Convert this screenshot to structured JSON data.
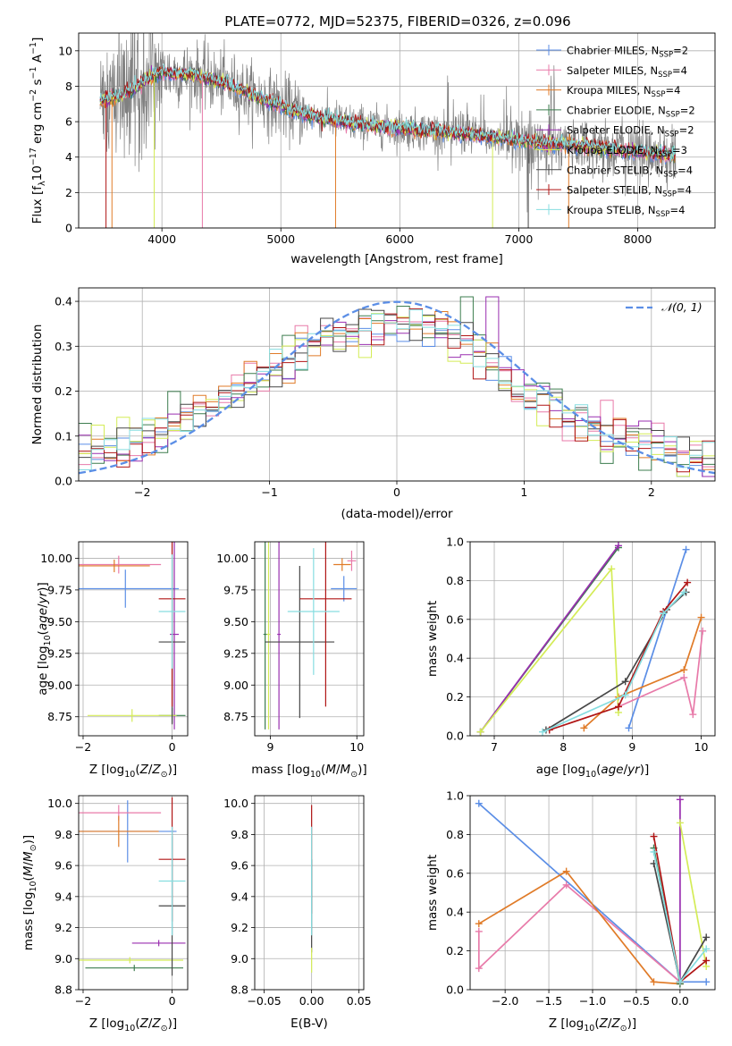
{
  "figure": {
    "title": "PLATE=0772, MJD=52375, FIBERID=0326, z=0.096"
  },
  "colors": {
    "chabrier_miles": "#5b8ee6",
    "salpeter_miles": "#e87aa9",
    "kroupa_miles": "#e07b28",
    "chabrier_elodie": "#3d7d4f",
    "salpeter_elodie": "#9a2fb0",
    "kroupa_elodie": "#d4ec57",
    "chabrier_stelib": "#474747",
    "salpeter_stelib": "#b01515",
    "kroupa_stelib": "#86dde0",
    "data": "#808080",
    "normal": "#5b8ee6"
  },
  "chart_data": [
    {
      "id": "spectrum",
      "type": "line",
      "xlabel": "wavelength [Angstrom, rest frame]",
      "ylabel": "Flux [f_λ10^-17 erg cm^-2 s^-1 A^-1]",
      "xlim": [
        3300,
        8650
      ],
      "ylim": [
        0,
        11
      ],
      "xticks": [
        4000,
        5000,
        6000,
        7000,
        8000
      ],
      "yticks": [
        0,
        2,
        4,
        6,
        8,
        10
      ],
      "legend_position": "top-right",
      "continuum_model": {
        "x": [
          3500,
          3700,
          3850,
          4000,
          4300,
          4600,
          4900,
          5200,
          5600,
          6000,
          6400,
          6800,
          7200,
          7600,
          8000,
          8300
        ],
        "y": [
          7.2,
          7.6,
          8.3,
          8.8,
          8.6,
          8.0,
          7.1,
          6.4,
          5.9,
          5.6,
          5.4,
          5.1,
          4.8,
          4.6,
          4.3,
          4.1
        ]
      },
      "legend": [
        {
          "label": "Chabrier MILES, N",
          "sub": "SSP",
          "n": "=2",
          "color_key": "chabrier_miles"
        },
        {
          "label": "Salpeter MILES, N",
          "sub": "SSP",
          "n": "=4",
          "color_key": "salpeter_miles"
        },
        {
          "label": "Kroupa MILES, N",
          "sub": "SSP",
          "n": "=4",
          "color_key": "kroupa_miles"
        },
        {
          "label": "Chabrier ELODIE, N",
          "sub": "SSP",
          "n": "=2",
          "color_key": "chabrier_elodie"
        },
        {
          "label": "Salpeter ELODIE, N",
          "sub": "SSP",
          "n": "=2",
          "color_key": "salpeter_elodie"
        },
        {
          "label": "Kroupa ELODIE, N",
          "sub": "SSP",
          "n": "=3",
          "color_key": "kroupa_elodie"
        },
        {
          "label": "Chabrier STELIB, N",
          "sub": "SSP",
          "n": "=4",
          "color_key": "chabrier_stelib"
        },
        {
          "label": "Salpeter STELIB, N",
          "sub": "SSP",
          "n": "=4",
          "color_key": "salpeter_stelib"
        },
        {
          "label": "Kroupa STELIB, N",
          "sub": "SSP",
          "n": "=4",
          "color_key": "kroupa_stelib"
        }
      ]
    },
    {
      "id": "residuals",
      "type": "histogram",
      "xlabel": "(data-model)/error",
      "ylabel": "Normed distribution",
      "xlim": [
        -2.5,
        2.5
      ],
      "ylim": [
        0,
        0.43
      ],
      "xticks": [
        -2,
        -1,
        0,
        1,
        2
      ],
      "yticks": [
        0.0,
        0.1,
        0.2,
        0.3,
        0.4
      ],
      "bin_width": 0.1,
      "legend": [
        {
          "label": "𝒩(0, 1)",
          "color_key": "normal",
          "style": "dashed"
        }
      ],
      "legend_position": "top-right"
    },
    {
      "id": "age_vs_Z",
      "type": "errorbar",
      "xlabel": "Z [log10(Z/Z⊙)]",
      "ylabel": "age [log10(age/yr)]",
      "xlim": [
        -2.1,
        0.35
      ],
      "ylim": [
        8.6,
        10.13
      ],
      "xticks": [
        -2,
        0
      ],
      "yticks": [
        8.75,
        9.0,
        9.25,
        9.5,
        9.75,
        10.0
      ],
      "points": [
        {
          "c": "chabrier_miles",
          "x": -1.05,
          "y": 9.76,
          "xerr": 1.2,
          "yerr": 0.15
        },
        {
          "c": "salpeter_miles",
          "x": -1.2,
          "y": 9.95,
          "xerr": 0.95,
          "yerr": 0.07
        },
        {
          "c": "kroupa_miles",
          "x": -1.3,
          "y": 9.94,
          "xerr": 0.8,
          "yerr": 0.05
        },
        {
          "c": "chabrier_elodie",
          "x": 0.0,
          "y": 8.76,
          "xerr": 0.3,
          "yerr": 0.06
        },
        {
          "c": "salpeter_elodie",
          "x": 0.05,
          "y": 9.4,
          "xerr": 0.1,
          "yerr": 0.75
        },
        {
          "c": "kroupa_elodie",
          "x": -0.9,
          "y": 8.76,
          "xerr": 1.0,
          "yerr": 0.05
        },
        {
          "c": "chabrier_stelib",
          "x": 0.0,
          "y": 9.34,
          "xerr": 0.3,
          "yerr": 0.65
        },
        {
          "c": "salpeter_stelib",
          "x": 0.0,
          "y": 9.68,
          "xerr": 0.3,
          "yerr": 0.85
        },
        {
          "c": "kroupa_stelib",
          "x": 0.0,
          "y": 9.58,
          "xerr": 0.3,
          "yerr": 0.45
        }
      ]
    },
    {
      "id": "age_vs_mass",
      "type": "errorbar",
      "xlabel": "mass [log10(M/M⊙)]",
      "ylabel": "",
      "xlim": [
        8.82,
        10.08
      ],
      "ylim": [
        8.6,
        10.13
      ],
      "xticks": [
        9,
        10
      ],
      "yticks": [
        8.75,
        9.0,
        9.25,
        9.5,
        9.75,
        10.0
      ],
      "points": [
        {
          "c": "chabrier_miles",
          "x": 9.85,
          "y": 9.76,
          "xerr": 0.15,
          "yerr": 0.1
        },
        {
          "c": "salpeter_miles",
          "x": 9.94,
          "y": 9.98,
          "xerr": 0.05,
          "yerr": 0.08
        },
        {
          "c": "kroupa_miles",
          "x": 9.83,
          "y": 9.95,
          "xerr": 0.1,
          "yerr": 0.05
        },
        {
          "c": "chabrier_elodie",
          "x": 8.94,
          "y": 9.4,
          "xerr": 0.02,
          "yerr": 0.75
        },
        {
          "c": "salpeter_elodie",
          "x": 9.1,
          "y": 9.4,
          "xerr": 0.02,
          "yerr": 0.75
        },
        {
          "c": "kroupa_elodie",
          "x": 8.98,
          "y": 9.4,
          "xerr": 0.02,
          "yerr": 0.75
        },
        {
          "c": "chabrier_stelib",
          "x": 9.34,
          "y": 9.34,
          "xerr": 0.4,
          "yerr": 0.6
        },
        {
          "c": "salpeter_stelib",
          "x": 9.64,
          "y": 9.68,
          "xerr": 0.3,
          "yerr": 0.85
        },
        {
          "c": "kroupa_stelib",
          "x": 9.5,
          "y": 9.58,
          "xerr": 0.3,
          "yerr": 0.5
        }
      ]
    },
    {
      "id": "mass_weight_vs_age",
      "type": "line",
      "xlabel": "age [log10(age/yr)]",
      "ylabel": "mass weight",
      "xlim": [
        6.65,
        10.2
      ],
      "ylim": [
        0,
        1
      ],
      "xticks": [
        7,
        8,
        9,
        10
      ],
      "yticks": [
        0.0,
        0.2,
        0.4,
        0.6,
        0.8,
        1.0
      ],
      "series": [
        {
          "c": "chabrier_miles",
          "x": [
            8.95,
            9.78
          ],
          "y": [
            0.04,
            0.96
          ]
        },
        {
          "c": "salpeter_miles",
          "x": [
            8.8,
            9.75,
            9.88,
            10.02
          ],
          "y": [
            0.15,
            0.3,
            0.11,
            0.54
          ]
        },
        {
          "c": "kroupa_miles",
          "x": [
            8.3,
            8.8,
            9.75,
            10.0
          ],
          "y": [
            0.04,
            0.2,
            0.34,
            0.61
          ]
        },
        {
          "c": "chabrier_elodie",
          "x": [
            6.8,
            8.8
          ],
          "y": [
            0.02,
            0.97
          ]
        },
        {
          "c": "salpeter_elodie",
          "x": [
            6.8,
            8.8
          ],
          "y": [
            0.02,
            0.98
          ]
        },
        {
          "c": "kroupa_elodie",
          "x": [
            6.8,
            8.7,
            8.8
          ],
          "y": [
            0.02,
            0.86,
            0.12
          ]
        },
        {
          "c": "chabrier_stelib",
          "x": [
            7.75,
            8.9,
            9.5,
            9.78
          ],
          "y": [
            0.03,
            0.28,
            0.65,
            0.74
          ]
        },
        {
          "c": "salpeter_stelib",
          "x": [
            7.8,
            8.8,
            9.45,
            9.8
          ],
          "y": [
            0.03,
            0.15,
            0.64,
            0.79
          ]
        },
        {
          "c": "kroupa_stelib",
          "x": [
            7.7,
            8.9,
            9.45,
            9.75
          ],
          "y": [
            0.02,
            0.21,
            0.63,
            0.74
          ]
        }
      ]
    },
    {
      "id": "mass_vs_Z",
      "type": "errorbar",
      "xlabel": "Z [log10(Z/Z⊙)]",
      "ylabel": "mass [log10(M/M⊙)]",
      "xlim": [
        -2.1,
        0.35
      ],
      "ylim": [
        8.8,
        10.05
      ],
      "xticks": [
        -2,
        0
      ],
      "yticks": [
        8.8,
        9.0,
        9.2,
        9.4,
        9.6,
        9.8,
        10.0
      ],
      "points": [
        {
          "c": "chabrier_miles",
          "x": -1.0,
          "y": 9.82,
          "xerr": 1.1,
          "yerr": 0.2
        },
        {
          "c": "salpeter_miles",
          "x": -1.2,
          "y": 9.94,
          "xerr": 0.95,
          "yerr": 0.05
        },
        {
          "c": "kroupa_miles",
          "x": -1.2,
          "y": 9.82,
          "xerr": 0.9,
          "yerr": 0.1
        },
        {
          "c": "chabrier_elodie",
          "x": -0.85,
          "y": 8.94,
          "xerr": 1.1,
          "yerr": 0.02
        },
        {
          "c": "salpeter_elodie",
          "x": -0.3,
          "y": 9.1,
          "xerr": 0.6,
          "yerr": 0.02
        },
        {
          "c": "kroupa_elodie",
          "x": -0.95,
          "y": 8.99,
          "xerr": 1.2,
          "yerr": 0.02
        },
        {
          "c": "chabrier_stelib",
          "x": 0.0,
          "y": 9.34,
          "xerr": 0.3,
          "yerr": 0.45
        },
        {
          "c": "salpeter_stelib",
          "x": 0.0,
          "y": 9.64,
          "xerr": 0.3,
          "yerr": 0.4
        },
        {
          "c": "kroupa_stelib",
          "x": 0.0,
          "y": 9.5,
          "xerr": 0.3,
          "yerr": 0.35
        }
      ]
    },
    {
      "id": "mass_vs_ebv",
      "type": "errorbar",
      "xlabel": "E(B-V)",
      "ylabel": "",
      "xlim": [
        -0.06,
        0.055
      ],
      "ylim": [
        8.8,
        10.05
      ],
      "xticks": [
        -0.05,
        0.0,
        0.05
      ],
      "yticks": [
        8.8,
        9.0,
        9.2,
        9.4,
        9.6,
        9.8,
        10.0
      ],
      "points": [
        {
          "c": "salpeter_stelib",
          "x": 0.0,
          "y": 9.64,
          "xerr": 0.0,
          "yerr": 0.35
        },
        {
          "c": "chabrier_stelib",
          "x": 0.0,
          "y": 9.34,
          "xerr": 0.0,
          "yerr": 0.3
        },
        {
          "c": "kroupa_elodie",
          "x": 0.0,
          "y": 8.99,
          "xerr": 0.0,
          "yerr": 0.08
        },
        {
          "c": "kroupa_stelib",
          "x": 0.0,
          "y": 9.5,
          "xerr": 0.0,
          "yerr": 0.35
        }
      ]
    },
    {
      "id": "mass_weight_vs_Z",
      "type": "line",
      "xlabel": "Z [log10(Z/Z⊙)]",
      "ylabel": "mass weight",
      "xlim": [
        -2.4,
        0.4
      ],
      "ylim": [
        0,
        1
      ],
      "xticks": [
        -2.0,
        -1.5,
        -1.0,
        -0.5,
        0.0
      ],
      "yticks": [
        0.0,
        0.2,
        0.4,
        0.6,
        0.8,
        1.0
      ],
      "series": [
        {
          "c": "chabrier_miles",
          "x": [
            -2.3,
            0.0,
            0.3
          ],
          "y": [
            0.96,
            0.04,
            0.04
          ]
        },
        {
          "c": "salpeter_miles",
          "x": [
            -2.3,
            -2.3,
            -1.3,
            0.0
          ],
          "y": [
            0.3,
            0.11,
            0.54,
            0.04
          ]
        },
        {
          "c": "kroupa_miles",
          "x": [
            -2.3,
            -1.3,
            -0.3,
            0.0
          ],
          "y": [
            0.34,
            0.61,
            0.04,
            0.03
          ]
        },
        {
          "c": "chabrier_elodie",
          "x": [
            -0.3,
            0.0
          ],
          "y": [
            0.73,
            0.03
          ]
        },
        {
          "c": "salpeter_elodie",
          "x": [
            0.0,
            0.0
          ],
          "y": [
            0.98,
            0.04
          ]
        },
        {
          "c": "kroupa_elodie",
          "x": [
            0.0,
            0.3
          ],
          "y": [
            0.86,
            0.12
          ]
        },
        {
          "c": "chabrier_stelib",
          "x": [
            -0.3,
            0.0,
            0.3
          ],
          "y": [
            0.65,
            0.04,
            0.27
          ]
        },
        {
          "c": "salpeter_stelib",
          "x": [
            -0.3,
            0.0,
            0.3
          ],
          "y": [
            0.79,
            0.04,
            0.15
          ]
        },
        {
          "c": "kroupa_stelib",
          "x": [
            -0.3,
            0.0,
            0.3
          ],
          "y": [
            0.71,
            0.04,
            0.21
          ]
        }
      ]
    }
  ]
}
